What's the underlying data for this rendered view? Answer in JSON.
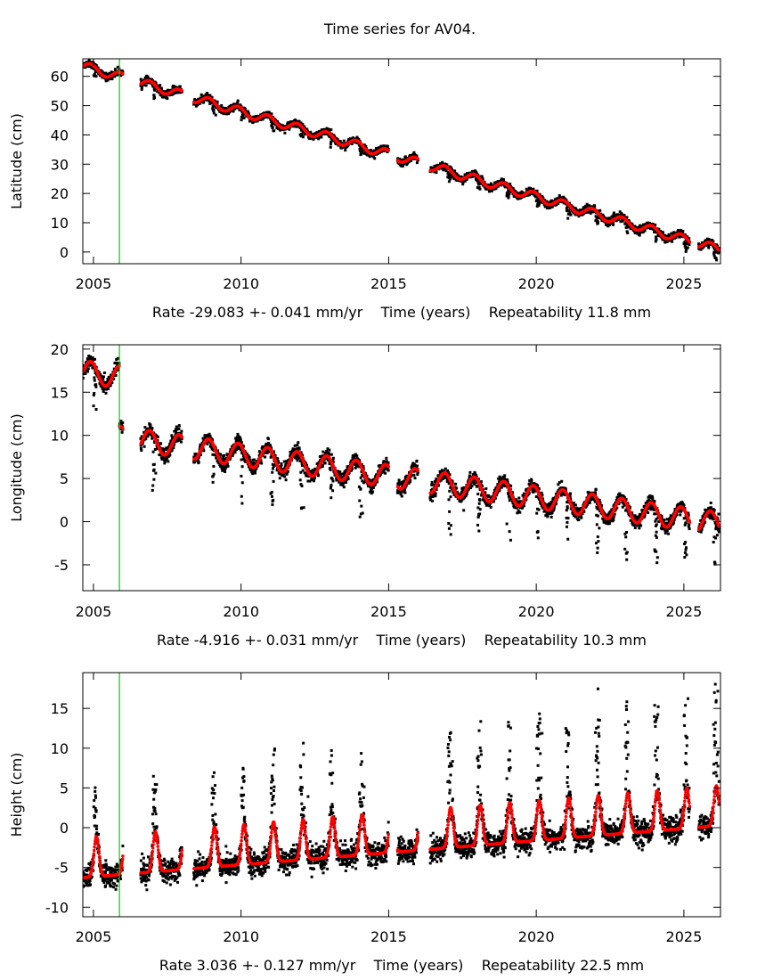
{
  "chart_data": {
    "type": "scatter",
    "title": "Time series for AV04.",
    "colors": {
      "observations": "#000000",
      "model_fit": "#ff0000",
      "event_line": "#00cc00",
      "frame": "#000000"
    },
    "event_marker_year": 2005.88,
    "panels": [
      {
        "id": "latitude",
        "ylabel": "Latitude (cm)",
        "xlabel_parts": [
          "Rate -29.083 +- 0.041 mm/yr",
          "Time (years)",
          "Repeatability 11.8 mm"
        ],
        "xlim": [
          2004.64,
          2026.24
        ],
        "ylim": [
          -4,
          66
        ],
        "xticks": [
          2005,
          2010,
          2015,
          2020,
          2025
        ],
        "yticks": [
          0,
          10,
          20,
          30,
          40,
          50,
          60
        ],
        "rate_mm_per_yr": -29.083,
        "rate_sigma": 0.041,
        "repeatability_mm": 11.8,
        "trend": {
          "intercept_year": 2005.0,
          "intercept_value": 62.5
        },
        "seasonal_amplitude": 1.5,
        "noise": 1.2,
        "dip_depth": 4,
        "gaps": [
          [
            2006.0,
            2006.6
          ],
          [
            2008.0,
            2008.4
          ],
          [
            2015.0,
            2015.3
          ],
          [
            2016.0,
            2016.4
          ],
          [
            2025.2,
            2025.5
          ]
        ],
        "segments_range": [
          2004.65,
          2026.2
        ]
      },
      {
        "id": "longitude",
        "ylabel": "Longitude (cm)",
        "xlabel_parts": [
          "Rate -4.916 +- 0.031 mm/yr",
          "Time (years)",
          "Repeatability 10.3 mm"
        ],
        "xlim": [
          2004.64,
          2026.24
        ],
        "ylim": [
          -8,
          20.5
        ],
        "xticks": [
          2005,
          2010,
          2015,
          2020,
          2025
        ],
        "yticks": [
          -5,
          0,
          5,
          10,
          15,
          20
        ],
        "rate_mm_per_yr": -4.916,
        "rate_sigma": 0.031,
        "repeatability_mm": 10.3,
        "trend": {
          "intercept_year": 2005.0,
          "intercept_value": 17.2
        },
        "offset_at_event": -7.0,
        "seasonal_amplitude": 1.3,
        "noise": 0.8,
        "dip_depth": 4,
        "gaps": [
          [
            2006.0,
            2006.6
          ],
          [
            2008.0,
            2008.4
          ],
          [
            2015.0,
            2015.3
          ],
          [
            2016.0,
            2016.4
          ],
          [
            2025.2,
            2025.5
          ]
        ],
        "segments_range": [
          2004.65,
          2026.2
        ]
      },
      {
        "id": "height",
        "ylabel": "Height (cm)",
        "xlabel_parts": [
          "Rate 3.036 +- 0.127 mm/yr",
          "Time (years)",
          "Repeatability 22.5 mm"
        ],
        "xlim": [
          2004.64,
          2026.24
        ],
        "ylim": [
          -11.2,
          19.5
        ],
        "xticks": [
          2005,
          2010,
          2015,
          2020,
          2025
        ],
        "yticks": [
          -10,
          -5,
          0,
          5,
          10,
          15
        ],
        "rate_mm_per_yr": 3.036,
        "rate_sigma": 0.127,
        "repeatability_mm": 22.5,
        "trend": {
          "intercept_year": 2005.0,
          "intercept_value": -4.5
        },
        "seasonal_amplitude": 2.8,
        "noise": 1.5,
        "spike_height": 7,
        "gaps": [
          [
            2006.0,
            2006.6
          ],
          [
            2008.0,
            2008.4
          ],
          [
            2015.0,
            2015.3
          ],
          [
            2016.0,
            2016.4
          ],
          [
            2025.2,
            2025.5
          ]
        ],
        "segments_range": [
          2004.65,
          2026.2
        ]
      }
    ]
  }
}
